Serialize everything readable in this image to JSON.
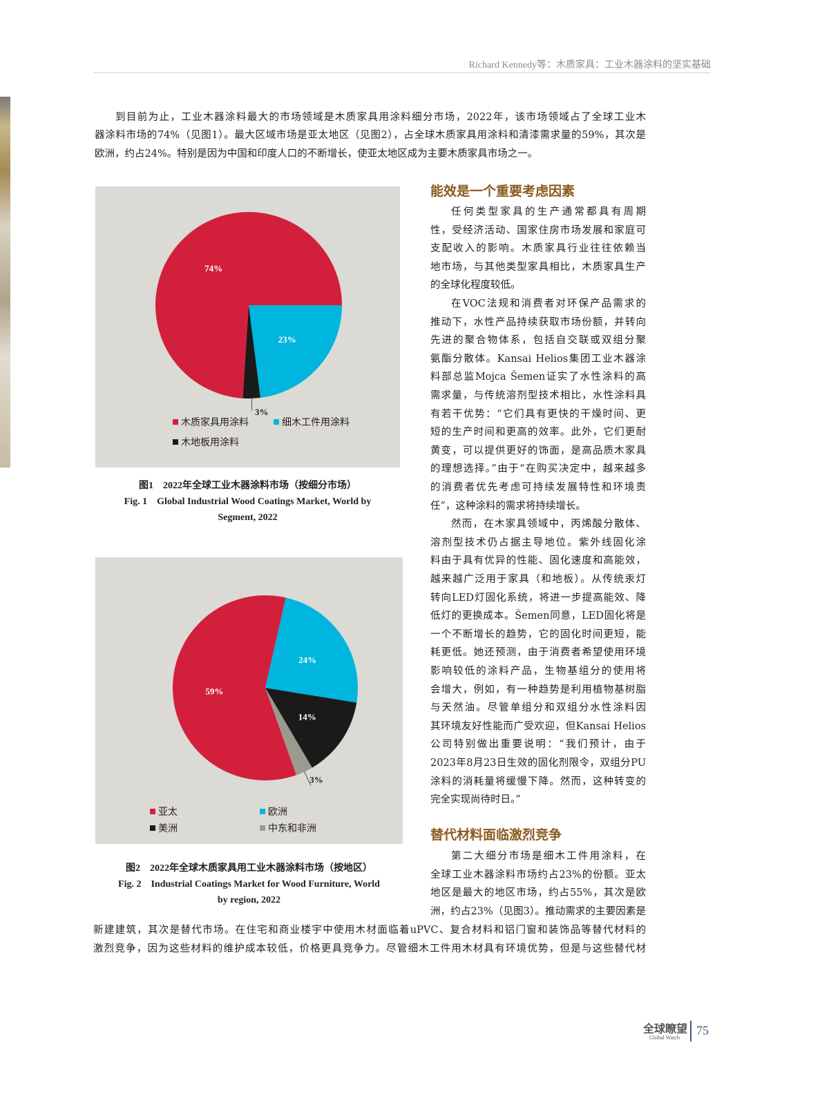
{
  "header": {
    "running_head": "Richard Kennedy等：木质家具：工业木器涂料的坚实基础"
  },
  "intro_lines": [
    "到目前为止，工业木器涂料最大的市场领域是木质家具用涂料细分市场，2022年，该市场领域占了全球工业木",
    "器涂料市场的74%（见图1）。最大区域市场是亚太地区（见图2），占全球木质家具用涂料和清漆需求量的59%，其次是",
    "欧洲，约占24%。特别是因为中国和印度人口的不断增长，使亚太地区成为主要木质家具市场之一。"
  ],
  "section1": {
    "heading": "能效是一个重要考虑因素",
    "paragraphs": [
      [
        "任何类型家具的生产通常都具有周期",
        "性，受经济活动、国家住房市场发展和家庭可",
        "支配收入的影响。木质家具行业往往依赖当",
        "地市场，与其他类型家具相比，木质家具生产",
        "的全球化程度较低。"
      ],
      [
        "在VOC法规和消费者对环保产品需求的",
        "推动下，水性产品持续获取市场份额，并转向",
        "先进的聚合物体系，包括自交联或双组分聚",
        "氨酯分散体。Kansai Helios集团工业木器涂",
        "料部总监Mojca Šemen证实了水性涂料的高",
        "需求量，与传统溶剂型技术相比，水性涂料具",
        "有若干优势：“它们具有更快的干燥时间、更",
        "短的生产时间和更高的效率。此外，它们更耐",
        "黄变，可以提供更好的饰面，是高品质木家具",
        "的理想选择。”由于“在购买决定中，越来越多",
        "的消费者优先考虑可持续发展特性和环境责",
        "任”，这种涂料的需求将持续增长。"
      ],
      [
        "然而，在木家具领域中，丙烯酸分散体、",
        "溶剂型技术仍占据主导地位。紫外线固化涂",
        "料由于具有优异的性能、固化速度和高能效，",
        "越来越广泛用于家具（和地板）。从传统汞灯",
        "转向LED灯固化系统，将进一步提高能效、降",
        "低灯的更换成本。Šemen同意，LED固化将是",
        "一个不断增长的趋势，它的固化时间更短，能",
        "耗更低。她还预测，由于消费者希望使用环境",
        "影响较低的涂料产品，生物基组分的使用将",
        "会增大，例如，有一种趋势是利用植物基树脂",
        "与天然油。尽管单组分和双组分水性涂料因",
        "其环境友好性能而广受欢迎，但Kansai Helios",
        "公司特别做出重要说明：“我们预计，由于",
        "2023年8月23日生效的固化剂限令，双组分PU",
        "涂料的消耗量将缓慢下降。然而，这种转变的",
        "完全实现尚待时日。”"
      ]
    ]
  },
  "section2": {
    "heading": "替代材料面临激烈竞争",
    "column_lines": [
      "第二大细分市场是细木工件用涂料，在",
      "全球工业木器涂料市场约占23%的份额。亚太",
      "地区是最大的地区市场，约占55%，其次是欧",
      "洲，约占23%（见图3）。推动需求的主要因素是"
    ],
    "full_lines": [
      "新建建筑，其次是替代市场。在住宅和商业楼宇中使用木材面临着uPVC、复合材料和铝门窗和装饰品等替代材料的",
      "激烈竞争，因为这些材料的维护成本较低，价格更具竞争力。尽管细木工件用木材具有环境优势，但是与这些替代材"
    ]
  },
  "chart_data": [
    {
      "type": "pie",
      "caption_cn": "图1　2022年全球工业木器涂料市场（按细分市场）",
      "caption_en_1": "Fig. 1　Global Industrial Wood Coatings Market, World by",
      "caption_en_2": "Segment, 2022",
      "slices": [
        {
          "name": "木质家具用涂料",
          "value": 74,
          "label": "74%",
          "color": "#d21f3c"
        },
        {
          "name": "细木工件用涂料",
          "value": 23,
          "label": "23%",
          "color": "#00b5de"
        },
        {
          "name": "木地板用涂料",
          "value": 3,
          "label": "3%",
          "color": "#1a1a1a"
        }
      ]
    },
    {
      "type": "pie",
      "caption_cn": "图2　2022年全球木质家具用工业木器涂料市场（按地区）",
      "caption_en_1": "Fig. 2　Industrial Coatings Market for Wood Furniture, World",
      "caption_en_2": "by region, 2022",
      "slices": [
        {
          "name": "亚太",
          "value": 59,
          "label": "59%",
          "color": "#d21f3c"
        },
        {
          "name": "欧洲",
          "value": 24,
          "label": "24%",
          "color": "#00b5de"
        },
        {
          "name": "美洲",
          "value": 14,
          "label": "14%",
          "color": "#1a1a1a"
        },
        {
          "name": "中东和非洲",
          "value": 3,
          "label": "3%",
          "color": "#9a9a8e"
        }
      ]
    }
  ],
  "footer": {
    "brand": "全球瞭望",
    "brand_en": "Global Watch",
    "page": "75"
  }
}
